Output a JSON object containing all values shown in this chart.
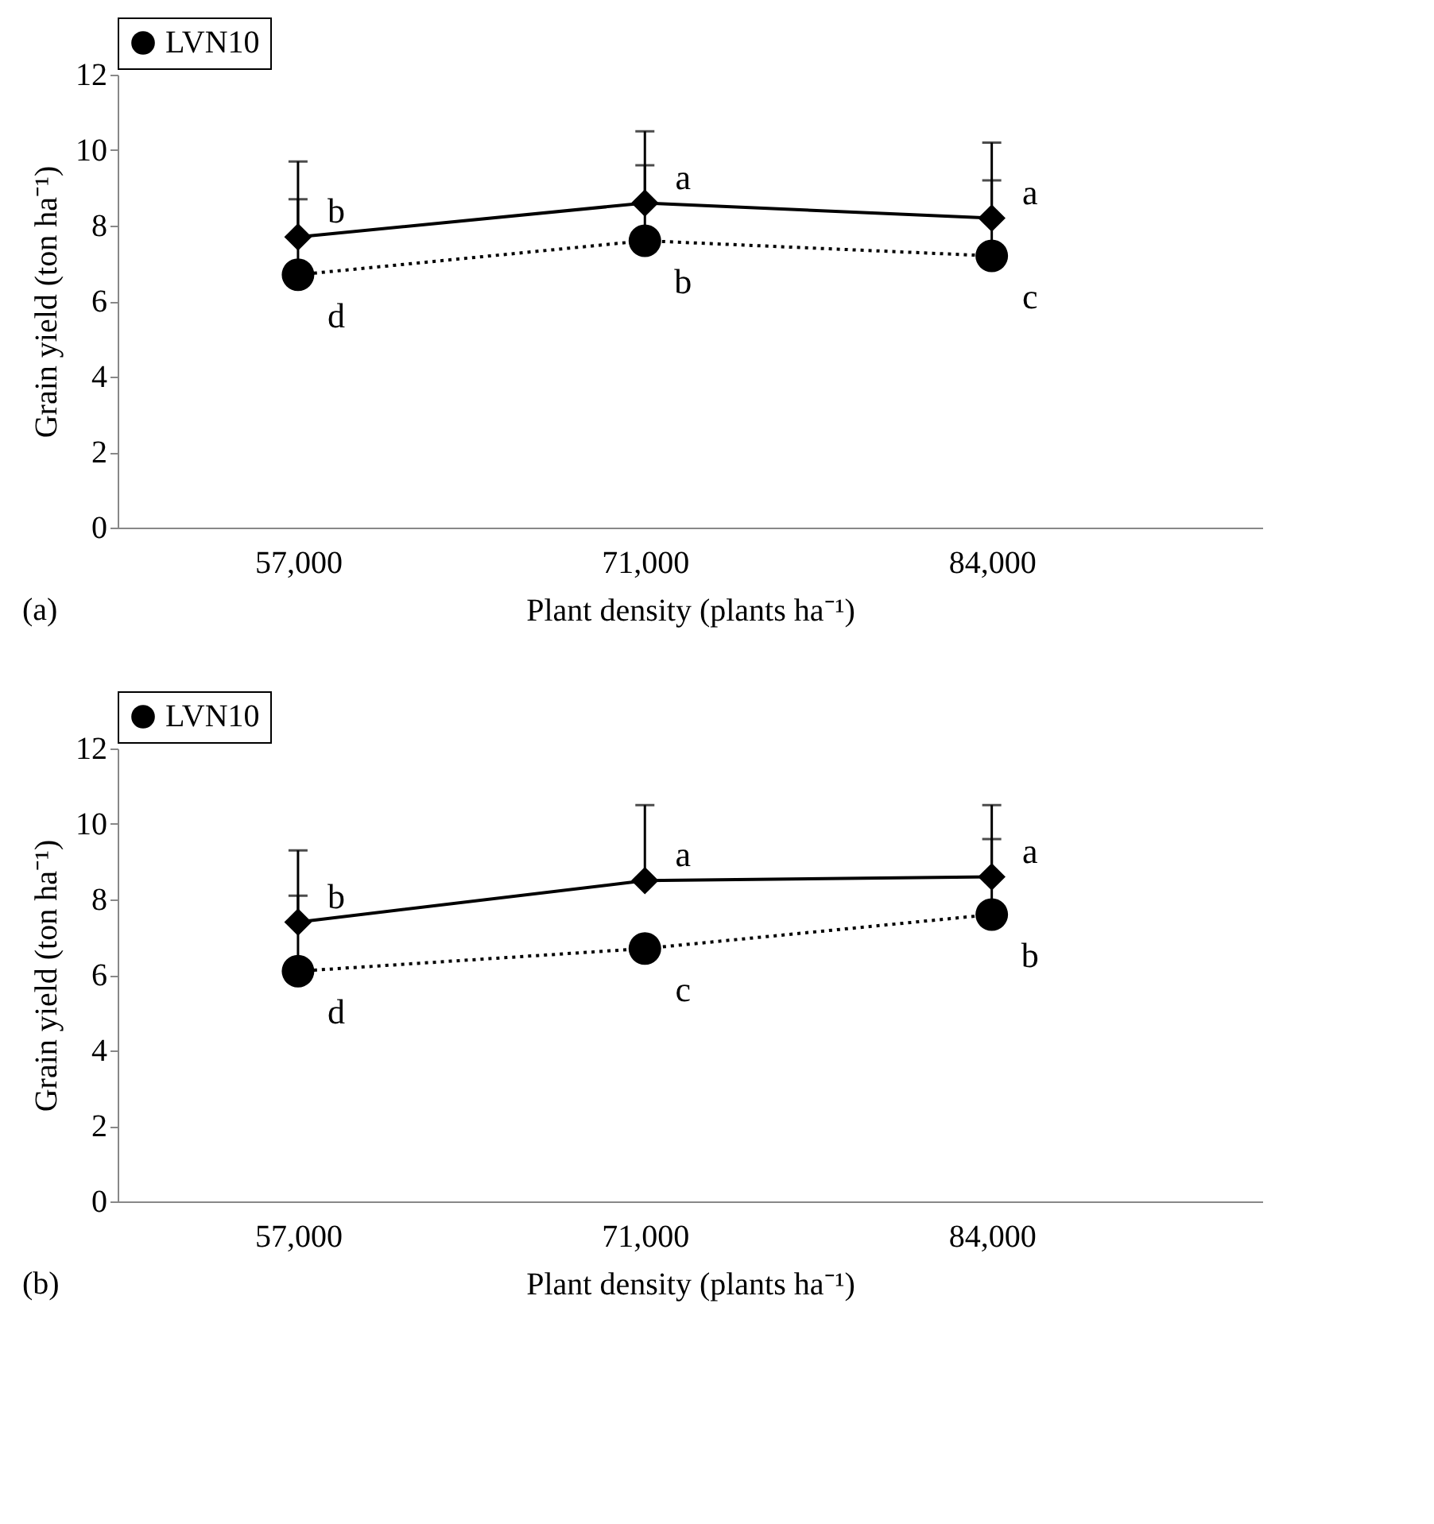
{
  "chart_data": [
    {
      "type": "line",
      "xlabel": "Plant density (plants ha⁻¹)",
      "ylabel": "Grain yield (ton ha⁻¹)",
      "categories": [
        "57,000",
        "71,000",
        "84,000"
      ],
      "ylim": [
        0,
        12
      ],
      "yticks": [
        0,
        2,
        4,
        6,
        8,
        10,
        12
      ],
      "grid": false,
      "legend": "top",
      "tick_labels": "xy",
      "series": [
        {
          "name": null,
          "color": "#000000",
          "marker": "diamond",
          "line_style": "solid",
          "values": [
            7.7,
            8.6,
            8.2
          ],
          "errors": [
            [
              7.7,
              9.7
            ],
            [
              8.6,
              10.5
            ],
            [
              8.2,
              10.2
            ]
          ]
        },
        {
          "name": "LVN10",
          "color": "#000000",
          "marker": "circle",
          "line_style": "dotted",
          "values": [
            6.7,
            7.6,
            7.2
          ],
          "errors": [
            [
              6.7,
              8.7
            ],
            [
              7.6,
              9.6
            ],
            [
              7.2,
              9.2
            ]
          ]
        }
      ],
      "annotations": [
        {
          "text": "b",
          "x": "57,000",
          "y": 7.7
        },
        {
          "text": "a",
          "x": "71,000",
          "y": 8.6
        },
        {
          "text": "a",
          "x": "84,000",
          "y": 8.2
        },
        {
          "text": "d",
          "x": "57,000",
          "y": 6.7
        },
        {
          "text": "b",
          "x": "71,000",
          "y": 7.6
        },
        {
          "text": "c",
          "x": "84,000",
          "y": 7.2
        },
        "(a)"
      ]
    },
    {
      "type": "line",
      "xlabel": "Plant density (plants ha⁻¹)",
      "ylabel": "Grain yield (ton ha⁻¹)",
      "categories": [
        "57,000",
        "71,000",
        "84,000"
      ],
      "ylim": [
        0,
        12
      ],
      "yticks": [
        0,
        2,
        4,
        6,
        8,
        10,
        12
      ],
      "grid": false,
      "legend": "top",
      "tick_labels": "xy",
      "series": [
        {
          "name": null,
          "color": "#000000",
          "marker": "diamond",
          "line_style": "solid",
          "values": [
            7.4,
            8.5,
            8.6
          ],
          "errors": [
            [
              7.4,
              9.3
            ],
            [
              8.5,
              10.5
            ],
            [
              8.6,
              10.5
            ]
          ]
        },
        {
          "name": "LVN10",
          "color": "#000000",
          "marker": "circle",
          "line_style": "dotted",
          "values": [
            6.1,
            6.7,
            7.6
          ],
          "errors": [
            [
              6.1,
              8.1
            ],
            null,
            [
              7.6,
              9.6
            ]
          ]
        }
      ],
      "annotations": [
        {
          "text": "b",
          "x": "57,000",
          "y": 7.4
        },
        {
          "text": "a",
          "x": "71,000",
          "y": 8.5
        },
        {
          "text": "a",
          "x": "84,000",
          "y": 8.6
        },
        {
          "text": "d",
          "x": "57,000",
          "y": 6.1
        },
        {
          "text": "c",
          "x": "71,000",
          "y": 6.7
        },
        {
          "text": "b",
          "x": "84,000",
          "y": 7.6
        },
        "(b)"
      ]
    }
  ]
}
